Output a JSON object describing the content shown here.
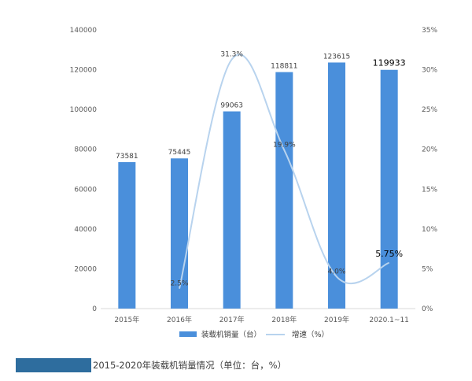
{
  "chart_data": {
    "type": "bar+line",
    "categories": [
      "2015年",
      "2016年",
      "2017年",
      "2018年",
      "2019年",
      "2020.1~11"
    ],
    "series": [
      {
        "name": "装载机销量（台）",
        "type": "bar",
        "axis": "left",
        "values": [
          73581,
          75445,
          99063,
          118811,
          123615,
          119933
        ],
        "labels": [
          "73581",
          "75445",
          "99063",
          "118811",
          "123615",
          "119933"
        ],
        "color": "#4a8fdb"
      },
      {
        "name": "增速（%）",
        "type": "line",
        "axis": "right",
        "values": [
          null,
          2.5,
          31.3,
          19.9,
          4.0,
          5.75
        ],
        "labels": [
          "",
          "2.5%",
          "31.3%",
          "19.9%",
          "4.0%",
          "5.75%"
        ],
        "color": "#b8d3ee"
      }
    ],
    "y_left": {
      "min": 0,
      "max": 140000,
      "ticks": [
        "0",
        "20000",
        "40000",
        "60000",
        "80000",
        "100000",
        "120000",
        "140000"
      ]
    },
    "y_right": {
      "min": 0,
      "max": 35,
      "ticks": [
        "0%",
        "5%",
        "10%",
        "15%",
        "20%",
        "25%",
        "30%",
        "35%"
      ]
    },
    "grid": false,
    "legend_position": "bottom"
  },
  "caption": "2015-2020年装载机销量情况（单位：台，%）"
}
